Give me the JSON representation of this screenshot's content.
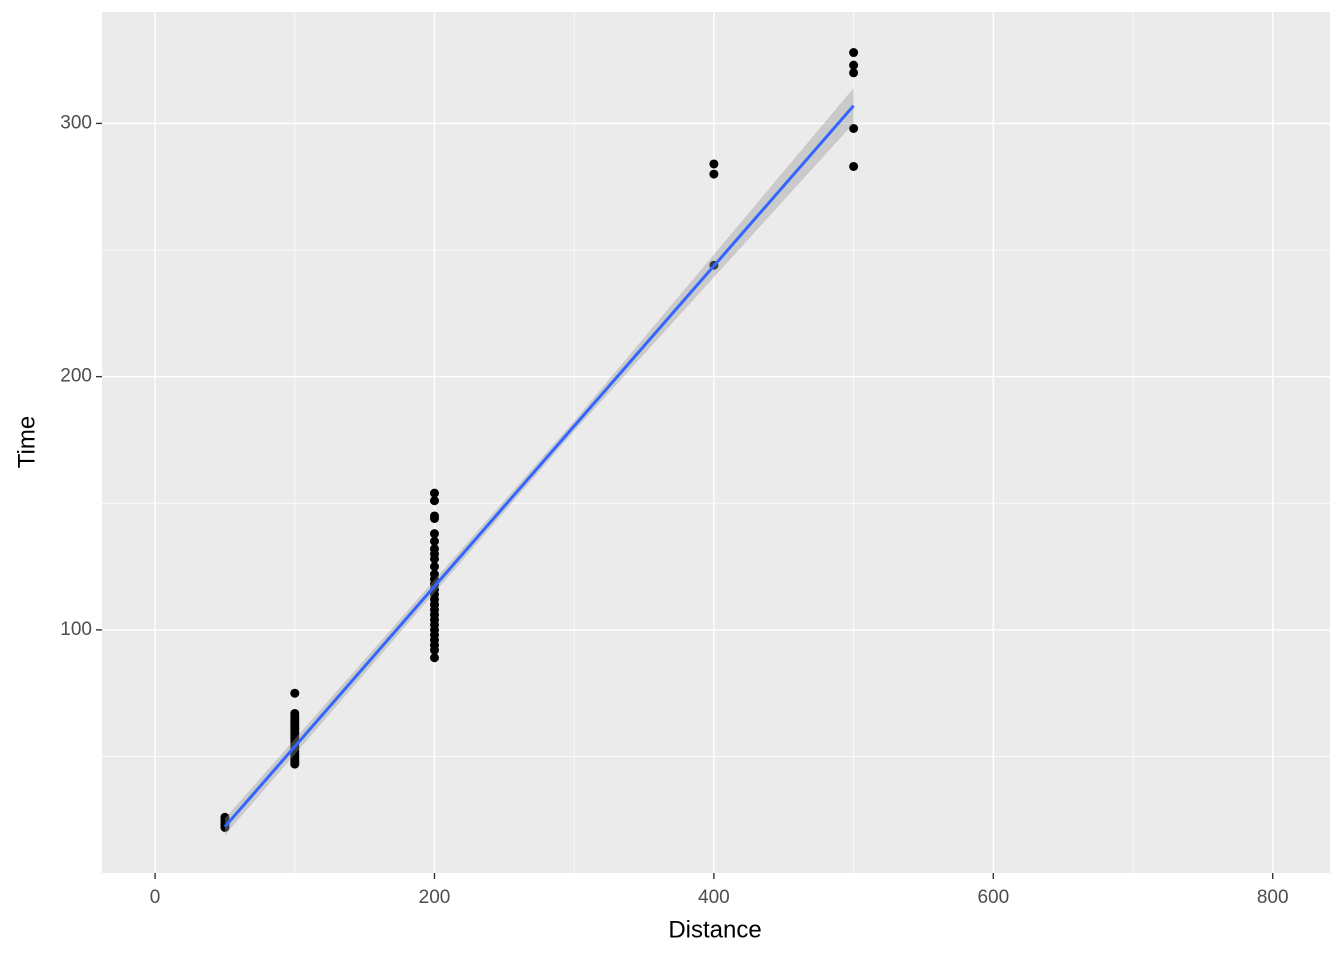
{
  "chart_data": {
    "type": "scatter",
    "x_label": "Distance",
    "y_label": "Time",
    "xlim": [
      -38,
      841
    ],
    "ylim": [
      4,
      344
    ],
    "xticks": [
      0,
      200,
      400,
      600,
      800
    ],
    "yticks": [
      100,
      200,
      300
    ],
    "x_minor_grid": [
      100,
      300,
      500,
      700
    ],
    "y_minor_grid": [
      50,
      150,
      250
    ],
    "grid": true,
    "series": [
      {
        "color": "#000000",
        "x": [
          50,
          50,
          50,
          50,
          50,
          100,
          100,
          100,
          100,
          100,
          100,
          100,
          100,
          100,
          100,
          100,
          100,
          100,
          100,
          100,
          100,
          100,
          100,
          100,
          100,
          100,
          100,
          200,
          200,
          200,
          200,
          200,
          200,
          200,
          200,
          200,
          200,
          200,
          200,
          200,
          200,
          200,
          200,
          200,
          200,
          200,
          200,
          200,
          200,
          200,
          200,
          200,
          200,
          200,
          400,
          400,
          400,
          500,
          500,
          500,
          500,
          500
        ],
        "values": [
          22,
          23,
          24,
          25,
          26,
          75,
          67,
          66,
          65,
          64,
          63,
          62,
          61,
          60,
          59,
          58,
          57,
          56,
          55,
          54,
          53,
          52,
          51,
          50,
          49,
          48,
          47,
          154,
          151,
          145,
          144,
          138,
          135,
          132,
          130,
          128,
          125,
          122,
          120,
          118,
          116,
          114,
          112,
          110,
          108,
          106,
          104,
          102,
          100,
          98,
          96,
          94,
          92,
          89,
          284,
          280,
          244,
          328,
          323,
          320,
          298,
          283
        ]
      }
    ],
    "fit": {
      "color": "#3366ff",
      "band_color": "#999999",
      "x": [
        50,
        300,
        500
      ],
      "values": [
        22.3,
        180.5,
        307
      ],
      "lower": [
        19,
        178.5,
        300
      ],
      "upper": [
        25.5,
        182.5,
        314
      ]
    }
  }
}
